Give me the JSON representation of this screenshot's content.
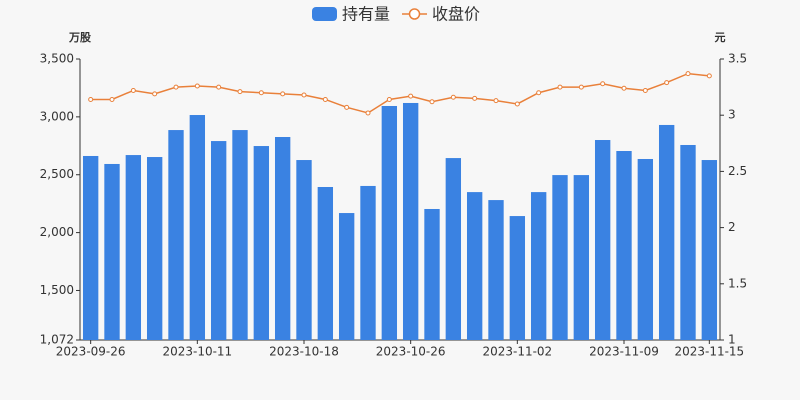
{
  "chart_data": {
    "type": "bar",
    "y_label": "万股",
    "y2_label": "元",
    "categories": [
      "2023-09-26",
      null,
      null,
      null,
      null,
      "2023-10-11",
      null,
      null,
      null,
      null,
      "2023-10-18",
      null,
      null,
      null,
      null,
      "2023-10-26",
      null,
      null,
      null,
      null,
      "2023-11-02",
      null,
      null,
      null,
      null,
      "2023-11-09",
      null,
      null,
      null,
      "2023-11-15"
    ],
    "series": [
      {
        "name": "持有量",
        "type": "bar",
        "color": "#3a82e2",
        "values": [
          2662,
          2593,
          2670,
          2653,
          2886,
          3016,
          2791,
          2886,
          2748,
          2826,
          2627,
          2394,
          2169,
          2403,
          3094,
          3120,
          2204,
          2644,
          2350,
          2281,
          2143,
          2350,
          2497,
          2497,
          2800,
          2705,
          2636,
          2930,
          2757,
          2627
        ]
      },
      {
        "name": "收盘价",
        "type": "line",
        "axis": "y2",
        "color": "#e9803a",
        "values": [
          3.14,
          3.14,
          3.22,
          3.19,
          3.25,
          3.26,
          3.25,
          3.21,
          3.2,
          3.19,
          3.18,
          3.14,
          3.07,
          3.02,
          3.14,
          3.17,
          3.12,
          3.16,
          3.15,
          3.13,
          3.1,
          3.2,
          3.25,
          3.25,
          3.28,
          3.24,
          3.22,
          3.29,
          3.37,
          3.35
        ]
      }
    ],
    "ylim": [
      1072,
      3500
    ],
    "yticks": [
      {
        "value": 1072,
        "label": "1,072"
      },
      {
        "value": 1500,
        "label": "1,500"
      },
      {
        "value": 2000,
        "label": "2,000"
      },
      {
        "value": 2500,
        "label": "2,500"
      },
      {
        "value": 3000,
        "label": "3,000"
      },
      {
        "value": 3500,
        "label": "3,500"
      }
    ],
    "y2lim": [
      1,
      3.5
    ],
    "y2ticks": [
      1,
      1.5,
      2,
      2.5,
      3,
      3.5
    ],
    "grid": false,
    "legend": "top"
  }
}
